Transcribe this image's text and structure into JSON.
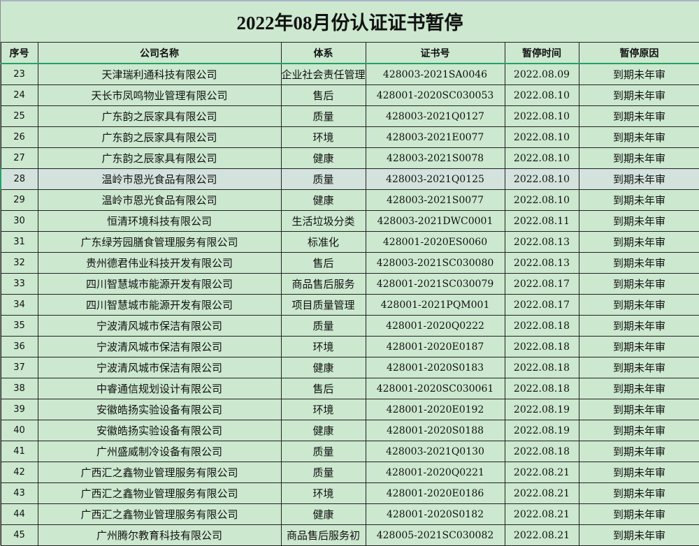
{
  "title": "2022年08月份认证证书暂停",
  "colors": {
    "background": "#cce8cf",
    "selected_row": "#d3e2dd",
    "header_underline": "#21a366"
  },
  "headers": [
    "序号",
    "公司名称",
    "体系",
    "证书号",
    "暂停时间",
    "暂停原因"
  ],
  "rows": [
    [
      "23",
      "天津瑞利通科技有限公司",
      "企业社会责任管理",
      "428003-2021SA0046",
      "2022.08.09",
      "到期未年审"
    ],
    [
      "24",
      "天长市凤鸣物业管理有限公司",
      "售后",
      "428001-2020SC030053",
      "2022.08.10",
      "到期未年审"
    ],
    [
      "25",
      "广东韵之辰家具有限公司",
      "质量",
      "428003-2021Q0127",
      "2022.08.10",
      "到期未年审"
    ],
    [
      "26",
      "广东韵之辰家具有限公司",
      "环境",
      "428003-2021E0077",
      "2022.08.10",
      "到期未年审"
    ],
    [
      "27",
      "广东韵之辰家具有限公司",
      "健康",
      "428003-2021S0078",
      "2022.08.10",
      "到期未年审"
    ],
    [
      "28",
      "温岭市恩光食品有限公司",
      "质量",
      "428003-2021Q0125",
      "2022.08.10",
      "到期未年审"
    ],
    [
      "29",
      "温岭市恩光食品有限公司",
      "健康",
      "428003-2021S0077",
      "2022.08.10",
      "到期未年审"
    ],
    [
      "30",
      "恒清环境科技有限公司",
      "生活垃圾分类",
      "428003-2021DWC0001",
      "2022.08.11",
      "到期未年审"
    ],
    [
      "31",
      "广东绿芳园膳食管理服务有限公司",
      "标准化",
      "428001-2020ES0060",
      "2022.08.13",
      "到期未年审"
    ],
    [
      "32",
      "贵州德君伟业科技开发有限公司",
      "售后",
      "428003-2021SC030080",
      "2022.08.13",
      "到期未年审"
    ],
    [
      "33",
      "四川智慧城市能源开发有限公司",
      "商品售后服务",
      "428001-2021SC030079",
      "2022.08.17",
      "到期未年审"
    ],
    [
      "34",
      "四川智慧城市能源开发有限公司",
      "项目质量管理",
      "428001-2021PQM001",
      "2022.08.17",
      "到期未年审"
    ],
    [
      "35",
      "宁波清风城市保洁有限公司",
      "质量",
      "428001-2020Q0222",
      "2022.08.18",
      "到期未年审"
    ],
    [
      "36",
      "宁波清风城市保洁有限公司",
      "环境",
      "428001-2020E0187",
      "2022.08.18",
      "到期未年审"
    ],
    [
      "37",
      "宁波清风城市保洁有限公司",
      "健康",
      "428001-2020S0183",
      "2022.08.18",
      "到期未年审"
    ],
    [
      "38",
      "中睿通信规划设计有限公司",
      "售后",
      "428001-2020SC030061",
      "2022.08.18",
      "到期未年审"
    ],
    [
      "39",
      "安徽皓扬实验设备有限公司",
      "环境",
      "428001-2020E0192",
      "2022.08.19",
      "到期未年审"
    ],
    [
      "40",
      "安徽皓扬实验设备有限公司",
      "健康",
      "428001-2020S0188",
      "2022.08.19",
      "到期未年审"
    ],
    [
      "41",
      "广州盛威制冷设备有限公司",
      "质量",
      "428003-2021Q0130",
      "2022.08.18",
      "到期未年审"
    ],
    [
      "42",
      "广西汇之鑫物业管理服务有限公司",
      "质量",
      "428001-2020Q0221",
      "2022.08.21",
      "到期未年审"
    ],
    [
      "43",
      "广西汇之鑫物业管理服务有限公司",
      "环境",
      "428001-2020E0186",
      "2022.08.21",
      "到期未年审"
    ],
    [
      "44",
      "广西汇之鑫物业管理服务有限公司",
      "健康",
      "428001-2020S0182",
      "2022.08.21",
      "到期未年审"
    ],
    [
      "45",
      "广州腾尔教育科技有限公司",
      "商品售后服务初",
      "428005-2021SC030082",
      "2022.08.21",
      "到期未年审"
    ]
  ],
  "selected_row_index": 5
}
